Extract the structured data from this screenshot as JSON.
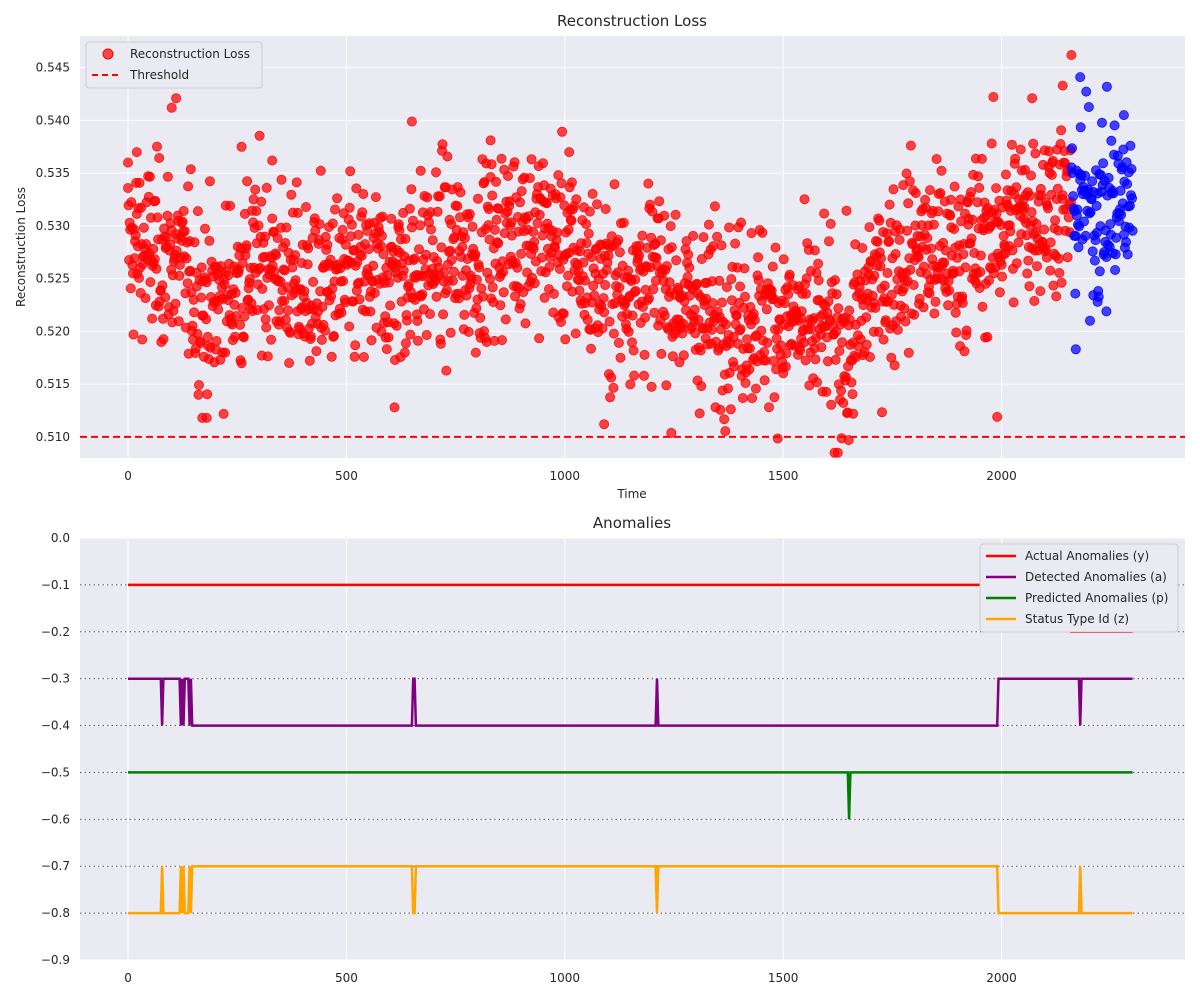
{
  "chart_data": [
    {
      "type": "scatter",
      "title": "Reconstruction Loss",
      "xlabel": "Time",
      "ylabel": "Reconstruction Loss",
      "xlim": [
        -110,
        2420
      ],
      "ylim": [
        0.508,
        0.548
      ],
      "xticks": [
        "0",
        "500",
        "1000",
        "1500",
        "2000"
      ],
      "yticks": [
        "0.510",
        "0.515",
        "0.520",
        "0.525",
        "0.530",
        "0.535",
        "0.540",
        "0.545"
      ],
      "threshold": 0.51,
      "legend": [
        "Reconstruction Loss",
        "Threshold"
      ],
      "legend_position": "top-left",
      "grid": true,
      "x_range": [
        0,
        2300
      ],
      "blue_from_x": 2160,
      "trend": [
        [
          0,
          0.528
        ],
        [
          100,
          0.527
        ],
        [
          200,
          0.522
        ],
        [
          300,
          0.527
        ],
        [
          400,
          0.524
        ],
        [
          500,
          0.525
        ],
        [
          600,
          0.525
        ],
        [
          700,
          0.527
        ],
        [
          800,
          0.527
        ],
        [
          900,
          0.53
        ],
        [
          1000,
          0.528
        ],
        [
          1100,
          0.524
        ],
        [
          1200,
          0.525
        ],
        [
          1300,
          0.522
        ],
        [
          1400,
          0.522
        ],
        [
          1500,
          0.521
        ],
        [
          1600,
          0.52
        ],
        [
          1650,
          0.518
        ],
        [
          1700,
          0.524
        ],
        [
          1800,
          0.528
        ],
        [
          1900,
          0.527
        ],
        [
          2000,
          0.53
        ],
        [
          2100,
          0.532
        ],
        [
          2200,
          0.532
        ],
        [
          2300,
          0.532
        ]
      ],
      "points_red": [
        [
          0,
          0.536
        ],
        [
          20,
          0.537
        ],
        [
          100,
          0.5412
        ],
        [
          110,
          0.5421
        ],
        [
          260,
          0.5375
        ],
        [
          330,
          0.5362
        ],
        [
          650,
          0.5399
        ],
        [
          830,
          0.5381
        ],
        [
          1010,
          0.537
        ],
        [
          2070,
          0.5421
        ],
        [
          2140,
          0.5433
        ],
        [
          2160,
          0.5462
        ],
        [
          170,
          0.5118
        ],
        [
          180,
          0.5118
        ],
        [
          1090,
          0.5112
        ],
        [
          1650,
          0.5097
        ],
        [
          1660,
          0.5122
        ],
        [
          1990,
          0.5119
        ],
        [
          610,
          0.5128
        ]
      ],
      "points_blue": [
        [
          2180,
          0.5441
        ],
        [
          2280,
          0.5405
        ],
        [
          2170,
          0.5183
        ],
        [
          2240,
          0.5219
        ],
        [
          2220,
          0.5228
        ]
      ],
      "series_colors": {
        "scatter_red": "#ff0000",
        "scatter_blue": "#0000ff",
        "threshold": "#ff0000"
      }
    },
    {
      "type": "line",
      "title": "Anomalies",
      "xlim": [
        -110,
        2420
      ],
      "ylim": [
        -0.9,
        0.0
      ],
      "xticks": [
        "0",
        "500",
        "1000",
        "1500",
        "2000"
      ],
      "yticks": [
        "0.0",
        "−0.1",
        "−0.2",
        "−0.3",
        "−0.4",
        "−0.5",
        "−0.6",
        "−0.7",
        "−0.8",
        "−0.9"
      ],
      "dotted_gridlines_y": [
        -0.1,
        -0.2,
        -0.3,
        -0.4,
        -0.5,
        -0.6,
        -0.7,
        -0.8
      ],
      "legend_position": "top-right",
      "series": [
        {
          "name": "Actual Anomalies (y)",
          "color": "#ff0000",
          "points": [
            [
              0,
              -0.1
            ],
            [
              2160,
              -0.1
            ],
            [
              2160,
              -0.2
            ],
            [
              2300,
              -0.2
            ]
          ]
        },
        {
          "name": "Detected Anomalies (a)",
          "color": "#800080",
          "points": [
            [
              0,
              -0.3
            ],
            [
              75,
              -0.3
            ],
            [
              78,
              -0.4
            ],
            [
              81,
              -0.3
            ],
            [
              118,
              -0.3
            ],
            [
              121,
              -0.4
            ],
            [
              124,
              -0.3
            ],
            [
              127,
              -0.4
            ],
            [
              130,
              -0.3
            ],
            [
              138,
              -0.3
            ],
            [
              141,
              -0.4
            ],
            [
              144,
              -0.3
            ],
            [
              147,
              -0.4
            ],
            [
              650,
              -0.4
            ],
            [
              653,
              -0.3
            ],
            [
              656,
              -0.3
            ],
            [
              659,
              -0.4
            ],
            [
              1208,
              -0.4
            ],
            [
              1211,
              -0.3
            ],
            [
              1214,
              -0.4
            ],
            [
              1990,
              -0.4
            ],
            [
              1993,
              -0.3
            ],
            [
              2177,
              -0.3
            ],
            [
              2180,
              -0.4
            ],
            [
              2183,
              -0.3
            ],
            [
              2300,
              -0.3
            ]
          ]
        },
        {
          "name": "Predicted Anomalies (p)",
          "color": "#008000",
          "points": [
            [
              0,
              -0.5
            ],
            [
              1648,
              -0.5
            ],
            [
              1651,
              -0.6
            ],
            [
              1654,
              -0.5
            ],
            [
              2300,
              -0.5
            ]
          ]
        },
        {
          "name": "Status Type Id (z)",
          "color": "#ffa500",
          "points": [
            [
              0,
              -0.8
            ],
            [
              75,
              -0.8
            ],
            [
              78,
              -0.7
            ],
            [
              81,
              -0.8
            ],
            [
              118,
              -0.8
            ],
            [
              121,
              -0.7
            ],
            [
              124,
              -0.8
            ],
            [
              127,
              -0.7
            ],
            [
              130,
              -0.8
            ],
            [
              138,
              -0.8
            ],
            [
              141,
              -0.7
            ],
            [
              144,
              -0.8
            ],
            [
              147,
              -0.7
            ],
            [
              650,
              -0.7
            ],
            [
              653,
              -0.8
            ],
            [
              656,
              -0.8
            ],
            [
              659,
              -0.7
            ],
            [
              1208,
              -0.7
            ],
            [
              1211,
              -0.8
            ],
            [
              1214,
              -0.7
            ],
            [
              1990,
              -0.7
            ],
            [
              1993,
              -0.8
            ],
            [
              2177,
              -0.8
            ],
            [
              2180,
              -0.7
            ],
            [
              2183,
              -0.8
            ],
            [
              2300,
              -0.8
            ]
          ]
        }
      ]
    }
  ]
}
